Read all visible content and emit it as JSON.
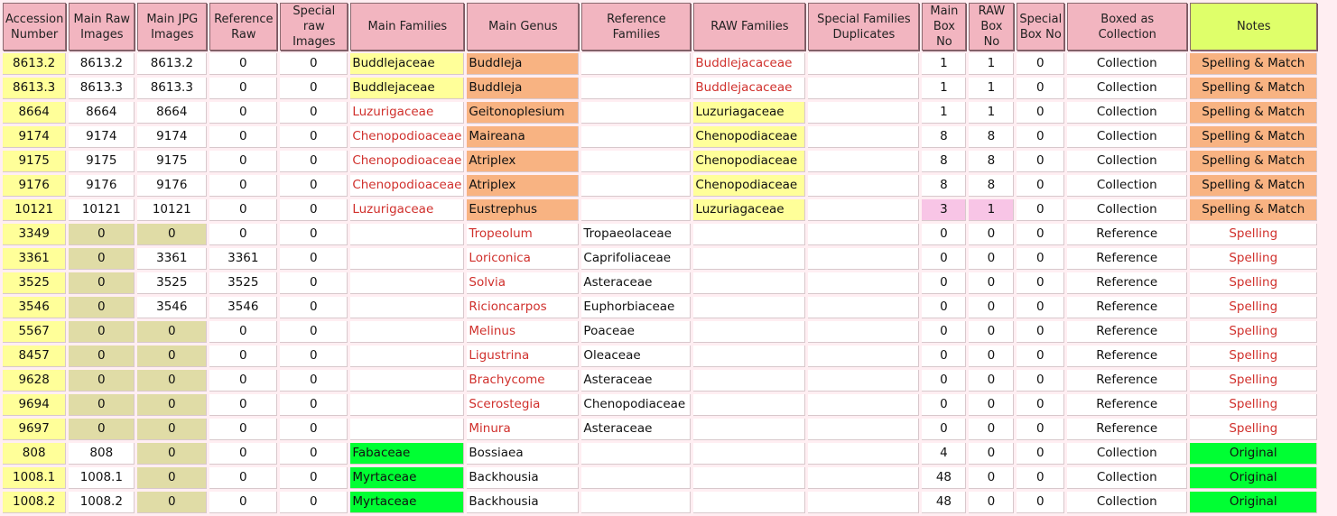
{
  "headers": [
    "Accession Number",
    "Main Raw Images",
    "Main JPG Images",
    "Reference Raw",
    "Special raw Images",
    "Main Families",
    "Main Genus",
    "Reference Families",
    "RAW Families",
    "Special Families Duplicates",
    "Main Box No",
    "RAW Box No",
    "Special Box No",
    "Boxed as Collection",
    "Notes"
  ],
  "colors": {
    "header_bg": "#f2b5c0",
    "notes_header_bg": "#dfff6a",
    "yellow": "#ffff99",
    "orange": "#f8b382",
    "green": "#00ff33",
    "tan": "#e0dca6",
    "pink": "#f8c5e6",
    "red_text": "#d0302c"
  },
  "rows": [
    [
      "8613.2",
      "8613.2",
      "8613.2",
      "0",
      "0",
      "Buddlejaceae",
      "Buddleja",
      "",
      "Buddlejacaceae",
      "",
      "1",
      "1",
      "0",
      "Collection",
      "Spelling & Match"
    ],
    [
      "8613.3",
      "8613.3",
      "8613.3",
      "0",
      "0",
      "Buddlejaceae",
      "Buddleja",
      "",
      "Buddlejacaceae",
      "",
      "1",
      "1",
      "0",
      "Collection",
      "Spelling & Match"
    ],
    [
      "8664",
      "8664",
      "8664",
      "0",
      "0",
      "Luzurigaceae",
      "Geitonoplesium",
      "",
      "Luzuriagaceae",
      "",
      "1",
      "1",
      "0",
      "Collection",
      "Spelling & Match"
    ],
    [
      "9174",
      "9174",
      "9174",
      "0",
      "0",
      "Chenopodioaceae",
      "Maireana",
      "",
      "Chenopodiaceae",
      "",
      "8",
      "8",
      "0",
      "Collection",
      "Spelling & Match"
    ],
    [
      "9175",
      "9175",
      "9175",
      "0",
      "0",
      "Chenopodioaceae",
      "Atriplex",
      "",
      "Chenopodiaceae",
      "",
      "8",
      "8",
      "0",
      "Collection",
      "Spelling & Match"
    ],
    [
      "9176",
      "9176",
      "9176",
      "0",
      "0",
      "Chenopodioaceae",
      "Atriplex",
      "",
      "Chenopodiaceae",
      "",
      "8",
      "8",
      "0",
      "Collection",
      "Spelling & Match"
    ],
    [
      "10121",
      "10121",
      "10121",
      "0",
      "0",
      "Luzurigaceae",
      "Eustrephus",
      "",
      "Luzuriagaceae",
      "",
      "3",
      "1",
      "0",
      "Collection",
      "Spelling & Match"
    ],
    [
      "3349",
      "0",
      "0",
      "0",
      "0",
      "",
      "Tropeolum",
      "Tropaeolaceae",
      "",
      "",
      "0",
      "0",
      "0",
      "Reference",
      "Spelling"
    ],
    [
      "3361",
      "0",
      "3361",
      "3361",
      "0",
      "",
      "Loriconica",
      "Caprifoliaceae",
      "",
      "",
      "0",
      "0",
      "0",
      "Reference",
      "Spelling"
    ],
    [
      "3525",
      "0",
      "3525",
      "3525",
      "0",
      "",
      "Solvia",
      "Asteraceae",
      "",
      "",
      "0",
      "0",
      "0",
      "Reference",
      "Spelling"
    ],
    [
      "3546",
      "0",
      "3546",
      "3546",
      "0",
      "",
      "Ricioncarpos",
      "Euphorbiaceae",
      "",
      "",
      "0",
      "0",
      "0",
      "Reference",
      "Spelling"
    ],
    [
      "5567",
      "0",
      "0",
      "0",
      "0",
      "",
      "Melinus",
      "Poaceae",
      "",
      "",
      "0",
      "0",
      "0",
      "Reference",
      "Spelling"
    ],
    [
      "8457",
      "0",
      "0",
      "0",
      "0",
      "",
      "Ligustrina",
      "Oleaceae",
      "",
      "",
      "0",
      "0",
      "0",
      "Reference",
      "Spelling"
    ],
    [
      "9628",
      "0",
      "0",
      "0",
      "0",
      "",
      "Brachycome",
      "Asteraceae",
      "",
      "",
      "0",
      "0",
      "0",
      "Reference",
      "Spelling"
    ],
    [
      "9694",
      "0",
      "0",
      "0",
      "0",
      "",
      "Scerostegia",
      "Chenopodiaceae",
      "",
      "",
      "0",
      "0",
      "0",
      "Reference",
      "Spelling"
    ],
    [
      "9697",
      "0",
      "0",
      "0",
      "0",
      "",
      "Minura",
      "Asteraceae",
      "",
      "",
      "0",
      "0",
      "0",
      "Reference",
      "Spelling"
    ],
    [
      "808",
      "808",
      "0",
      "0",
      "0",
      "Fabaceae",
      "Bossiaea",
      "",
      "",
      "",
      "4",
      "0",
      "0",
      "Collection",
      "Original"
    ],
    [
      "1008.1",
      "1008.1",
      "0",
      "0",
      "0",
      "Myrtaceae",
      "Backhousia",
      "",
      "",
      "",
      "48",
      "0",
      "0",
      "Collection",
      "Original"
    ],
    [
      "1008.2",
      "1008.2",
      "0",
      "0",
      "0",
      "Myrtaceae",
      "Backhousia",
      "",
      "",
      "",
      "48",
      "0",
      "0",
      "Collection",
      "Original"
    ]
  ],
  "cell_styles": [
    [
      "y",
      "",
      "",
      "",
      "",
      "y",
      "o",
      "",
      "red",
      "",
      "",
      "",
      "",
      "",
      "o"
    ],
    [
      "y",
      "",
      "",
      "",
      "",
      "y",
      "o",
      "",
      "red",
      "",
      "",
      "",
      "",
      "",
      "o"
    ],
    [
      "y",
      "",
      "",
      "",
      "",
      "red",
      "o",
      "",
      "y",
      "",
      "",
      "",
      "",
      "",
      "o"
    ],
    [
      "y",
      "",
      "",
      "",
      "",
      "red",
      "o",
      "",
      "y",
      "",
      "",
      "",
      "",
      "",
      "o"
    ],
    [
      "y",
      "",
      "",
      "",
      "",
      "red",
      "o",
      "",
      "y",
      "",
      "",
      "",
      "",
      "",
      "o"
    ],
    [
      "y",
      "",
      "",
      "",
      "",
      "red",
      "o",
      "",
      "y",
      "",
      "",
      "",
      "",
      "",
      "o"
    ],
    [
      "y",
      "",
      "",
      "",
      "",
      "red",
      "o",
      "",
      "y",
      "",
      "p",
      "p",
      "",
      "",
      "o"
    ],
    [
      "y",
      "t",
      "t",
      "",
      "",
      "",
      "red",
      "",
      "",
      "",
      "",
      "",
      "",
      "",
      "red"
    ],
    [
      "y",
      "t",
      "",
      "",
      "",
      "",
      "red",
      "",
      "",
      "",
      "",
      "",
      "",
      "",
      "red"
    ],
    [
      "y",
      "t",
      "",
      "",
      "",
      "",
      "red",
      "",
      "",
      "",
      "",
      "",
      "",
      "",
      "red"
    ],
    [
      "y",
      "t",
      "",
      "",
      "",
      "",
      "red",
      "",
      "",
      "",
      "",
      "",
      "",
      "",
      "red"
    ],
    [
      "y",
      "t",
      "t",
      "",
      "",
      "",
      "red",
      "",
      "",
      "",
      "",
      "",
      "",
      "",
      "red"
    ],
    [
      "y",
      "t",
      "t",
      "",
      "",
      "",
      "red",
      "",
      "",
      "",
      "",
      "",
      "",
      "",
      "red"
    ],
    [
      "y",
      "t",
      "t",
      "",
      "",
      "",
      "red",
      "",
      "",
      "",
      "",
      "",
      "",
      "",
      "red"
    ],
    [
      "y",
      "t",
      "t",
      "",
      "",
      "",
      "red",
      "",
      "",
      "",
      "",
      "",
      "",
      "",
      "red"
    ],
    [
      "y",
      "t",
      "t",
      "",
      "",
      "",
      "red",
      "",
      "",
      "",
      "",
      "",
      "",
      "",
      "red"
    ],
    [
      "y",
      "",
      "t",
      "",
      "",
      "g",
      "",
      "",
      "",
      "",
      "",
      "",
      "",
      "",
      "g"
    ],
    [
      "y",
      "",
      "t",
      "",
      "",
      "g",
      "",
      "",
      "",
      "",
      "",
      "",
      "",
      "",
      "g"
    ],
    [
      "y",
      "",
      "t",
      "",
      "",
      "g",
      "",
      "",
      "",
      "",
      "",
      "",
      "",
      "",
      "g"
    ]
  ]
}
